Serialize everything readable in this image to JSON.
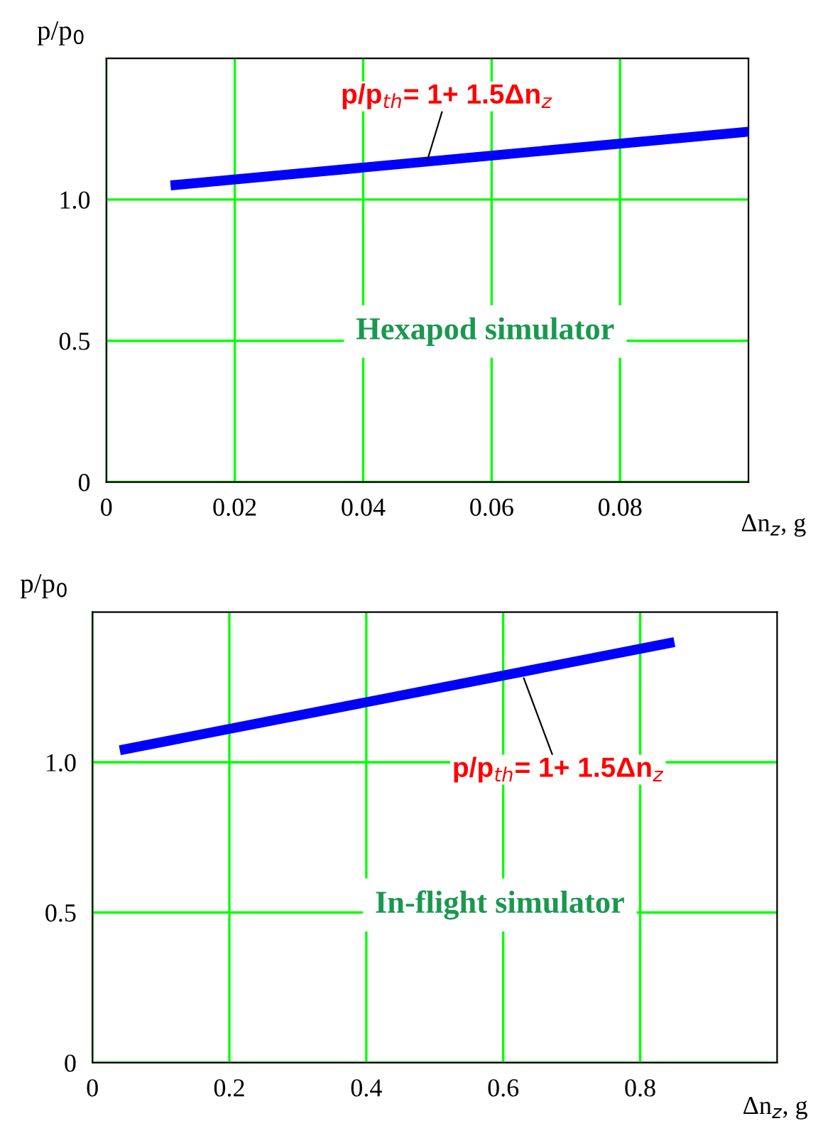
{
  "chart_data": [
    {
      "type": "line",
      "xlabel": "Δn$_{z}$, g",
      "ylabel": "p/p$_{0}$",
      "series": [
        {
          "color": "#0000ff",
          "x": [
            0.01,
            0.1
          ],
          "values": [
            1.05,
            1.24
          ]
        }
      ],
      "xlim": [
        0,
        0.1
      ],
      "ylim": [
        0,
        1.5
      ],
      "xticks": [
        0,
        0.02,
        0.04,
        0.06,
        0.08
      ],
      "yticks": [
        0,
        0.5,
        {
          "value": 1,
          "label": "1.0"
        }
      ],
      "grid": true,
      "marker": "none",
      "line_style": "solid",
      "annotations": [
        {
          "text": "p/p$_{th}$= 1+ 1.5Δn$_{z}$",
          "x": 0.05,
          "y": 1.14
        },
        "Hexapod simulator"
      ]
    },
    {
      "type": "line",
      "xlabel": "Δn$_{z}$, g",
      "ylabel": "p/p$_{0}$",
      "series": [
        {
          "color": "#0000ff",
          "x": [
            0.04,
            0.85
          ],
          "values": [
            1.04,
            1.4
          ]
        }
      ],
      "xlim": [
        0,
        1.0
      ],
      "ylim": [
        0,
        1.5
      ],
      "xticks": [
        0,
        0.2,
        0.4,
        0.6,
        0.8
      ],
      "yticks": [
        0,
        0.5,
        {
          "value": 1,
          "label": "1.0"
        }
      ],
      "grid": true,
      "marker": "none",
      "line_style": "solid",
      "annotations": [
        {
          "text": "p/p$_{th}$= 1+ 1.5Δn$_{z}$",
          "x": 0.63,
          "y": 1.28
        },
        "In-flight simulator"
      ]
    }
  ]
}
